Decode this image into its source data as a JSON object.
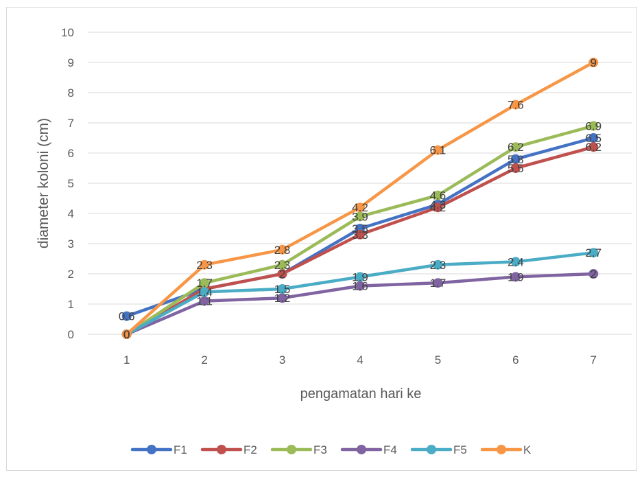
{
  "chart_data": {
    "type": "line",
    "categories": [
      "1",
      "2",
      "3",
      "4",
      "5",
      "6",
      "7"
    ],
    "ylabel": "diameter koloni (cm)",
    "xlabel": "pengamatan hari ke",
    "ylim": [
      0,
      10
    ],
    "yticks": [
      "0",
      "1",
      "2",
      "3",
      "4",
      "5",
      "6",
      "7",
      "8",
      "9",
      "10"
    ],
    "grid": true,
    "legend_position": "bottom",
    "series": [
      {
        "name": "F1",
        "color": "#4472c4",
        "values": [
          0.6,
          1.5,
          2.0,
          3.5,
          4.3,
          5.8,
          6.5
        ],
        "labels": [
          "0.6",
          "",
          "",
          "3.5",
          "4.3",
          "5.8",
          "6.5"
        ]
      },
      {
        "name": "F2",
        "color": "#c0504d",
        "values": [
          0,
          1.5,
          2.0,
          3.3,
          4.2,
          5.5,
          6.2
        ],
        "labels": [
          "0",
          "",
          "2",
          "3.3",
          "4.2",
          "5.5",
          "6.2"
        ]
      },
      {
        "name": "F3",
        "color": "#9bbb59",
        "values": [
          0,
          1.7,
          2.3,
          3.9,
          4.6,
          6.2,
          6.9
        ],
        "labels": [
          "0",
          "1.7",
          "2.3",
          "3.9",
          "4.6",
          "6.2",
          "6.9"
        ]
      },
      {
        "name": "F4",
        "color": "#8064a2",
        "values": [
          0,
          1.1,
          1.2,
          1.6,
          1.7,
          1.9,
          2.0
        ],
        "labels": [
          "0",
          "1.1",
          "1.2",
          "1.6",
          "1.7",
          "1.9",
          "2"
        ]
      },
      {
        "name": "F5",
        "color": "#4bacc6",
        "values": [
          0,
          1.4,
          1.5,
          1.9,
          2.3,
          2.4,
          2.7
        ],
        "labels": [
          "0",
          "1.4",
          "1.5",
          "1.9",
          "2.3",
          "2.4",
          "2.7"
        ]
      },
      {
        "name": "K",
        "color": "#f79646",
        "values": [
          0,
          2.3,
          2.8,
          4.2,
          6.1,
          7.6,
          9.0
        ],
        "labels": [
          "0",
          "2.3",
          "2.8",
          "4.2",
          "6.1",
          "7.6",
          "9"
        ]
      }
    ]
  }
}
